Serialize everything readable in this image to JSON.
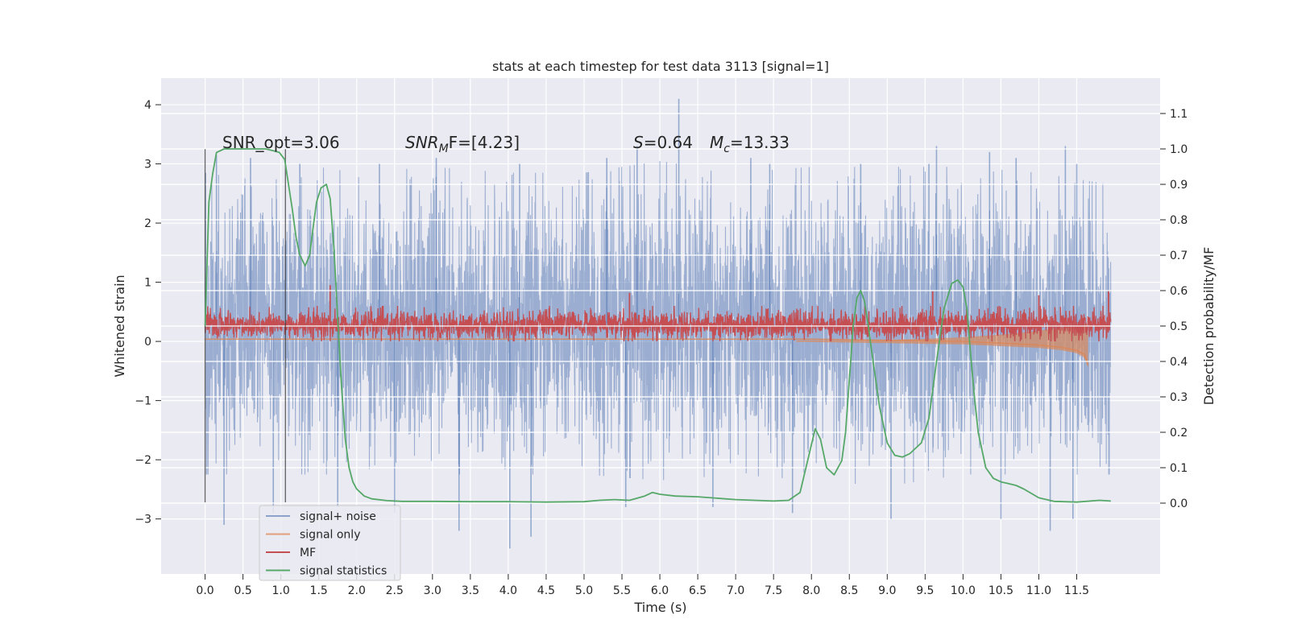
{
  "chart_data": {
    "type": "line",
    "title": "stats at each timestep for test data 3113 [signal=1]",
    "xlabel": "Time (s)",
    "ylabel_left": "Whitened strain",
    "ylabel_right": "Detection probability/MF",
    "xlim": [
      -0.58,
      12.6
    ],
    "ylim_left": [
      -3.93,
      4.45
    ],
    "ylim_right": [
      -0.2,
      1.2
    ],
    "grid": true,
    "legend_position": "lower-left",
    "x_ticks": [
      "0.0",
      "0.5",
      "1.0",
      "1.5",
      "2.0",
      "2.5",
      "3.0",
      "3.5",
      "4.0",
      "4.5",
      "5.0",
      "5.5",
      "6.0",
      "6.5",
      "7.0",
      "7.5",
      "8.0",
      "8.5",
      "9.0",
      "9.5",
      "10.0",
      "10.5",
      "11.0",
      "11.5"
    ],
    "y_ticks_left": [
      "4",
      "3",
      "2",
      "1",
      "0",
      "−1",
      "−2",
      "−3"
    ],
    "y_ticks_right": [
      "1.1",
      "1.0",
      "0.9",
      "0.8",
      "0.7",
      "0.6",
      "0.5",
      "0.4",
      "0.3",
      "0.2",
      "0.1",
      "0.0"
    ],
    "annotations": {
      "snr_opt": "SNR_opt=3.06",
      "snr_mf_a": "SNR",
      "snr_mf_b": "M",
      "snr_mf_c": "F=[4.23]",
      "s_a": "S",
      "s_b": "=0.64",
      "mc_a": "M",
      "mc_b": "c",
      "mc_c": "=13.33"
    },
    "vlines_x": [
      0.0,
      1.06
    ],
    "series": [
      {
        "name": "signal+ noise",
        "color": "#4c72b0",
        "note_range": "dense noise, roughly -2.3 to 2.9 with spikes up to 4.1 and down to -3.5",
        "t_end": 11.95,
        "envelope": [
          [
            0.0,
            -2.0,
            2.6
          ],
          [
            0.5,
            -2.0,
            2.5
          ],
          [
            1.0,
            -2.0,
            2.6
          ],
          [
            1.5,
            -2.0,
            2.7
          ],
          [
            2.0,
            -2.0,
            2.6
          ],
          [
            3.0,
            -2.0,
            2.7
          ],
          [
            4.0,
            -2.0,
            2.6
          ],
          [
            5.0,
            -2.0,
            2.6
          ],
          [
            6.0,
            -2.1,
            2.8
          ],
          [
            7.0,
            -2.0,
            2.6
          ],
          [
            8.0,
            -2.1,
            2.7
          ],
          [
            9.0,
            -2.2,
            2.7
          ],
          [
            10.0,
            -2.0,
            2.7
          ],
          [
            11.0,
            -2.0,
            2.6
          ],
          [
            11.95,
            -2.0,
            2.4
          ]
        ],
        "spikes": [
          [
            0.05,
            0.45
          ],
          [
            0.15,
            3.15
          ],
          [
            0.25,
            -3.1
          ],
          [
            0.6,
            3.1
          ],
          [
            0.9,
            -2.9
          ],
          [
            1.25,
            3.0
          ],
          [
            1.75,
            -2.8
          ],
          [
            2.3,
            3.0
          ],
          [
            2.5,
            -2.9
          ],
          [
            3.05,
            3.1
          ],
          [
            3.35,
            -3.2
          ],
          [
            4.02,
            -3.5
          ],
          [
            4.15,
            3.0
          ],
          [
            4.3,
            -3.3
          ],
          [
            5.3,
            3.1
          ],
          [
            5.55,
            -2.8
          ],
          [
            5.7,
            3.3
          ],
          [
            6.25,
            4.1
          ],
          [
            6.7,
            -2.8
          ],
          [
            7.2,
            3.1
          ],
          [
            7.45,
            3.0
          ],
          [
            7.75,
            -2.9
          ],
          [
            8.65,
            3.0
          ],
          [
            9.05,
            -3.0
          ],
          [
            9.55,
            3.0
          ],
          [
            9.65,
            3.3
          ],
          [
            10.35,
            3.2
          ],
          [
            10.5,
            -3.0
          ],
          [
            10.7,
            3.1
          ],
          [
            11.15,
            -3.2
          ],
          [
            11.35,
            3.3
          ],
          [
            11.45,
            -3.0
          ],
          [
            11.5,
            3.0
          ]
        ]
      },
      {
        "name": "signal only",
        "color": "#dd8452",
        "x": [
          0.0,
          8.0,
          9.0,
          10.0,
          10.5,
          11.0,
          11.3,
          11.5,
          11.6,
          11.63,
          11.65
        ],
        "y": [
          0.04,
          0.04,
          0.02,
          0.0,
          -0.03,
          -0.06,
          -0.1,
          -0.15,
          -0.22,
          -0.32,
          -0.4
        ]
      },
      {
        "name": "MF",
        "color": "#c44e52",
        "t_end": 11.95,
        "band": [
          0.0,
          0.6
        ],
        "spikes": [
          [
            1.65,
            0.95
          ],
          [
            5.6,
            0.82
          ],
          [
            9.6,
            0.85
          ],
          [
            11.0,
            0.78
          ],
          [
            11.92,
            0.85
          ]
        ]
      },
      {
        "name": "signal statistics",
        "color": "#55a868",
        "axis": "right",
        "x": [
          0.0,
          0.05,
          0.1,
          0.15,
          0.25,
          0.4,
          0.6,
          0.8,
          0.9,
          0.98,
          1.05,
          1.1,
          1.15,
          1.2,
          1.25,
          1.32,
          1.38,
          1.42,
          1.47,
          1.53,
          1.6,
          1.65,
          1.7,
          1.75,
          1.8,
          1.85,
          1.9,
          1.95,
          2.0,
          2.1,
          2.2,
          2.4,
          2.6,
          3.0,
          3.5,
          4.0,
          4.5,
          5.0,
          5.2,
          5.4,
          5.6,
          5.8,
          5.9,
          6.0,
          6.2,
          6.5,
          7.0,
          7.5,
          7.7,
          7.85,
          7.95,
          8.05,
          8.12,
          8.2,
          8.3,
          8.4,
          8.45,
          8.5,
          8.55,
          8.6,
          8.65,
          8.7,
          8.75,
          8.8,
          8.9,
          9.0,
          9.1,
          9.2,
          9.3,
          9.45,
          9.55,
          9.65,
          9.75,
          9.85,
          9.93,
          10.0,
          10.05,
          10.1,
          10.15,
          10.2,
          10.3,
          10.4,
          10.5,
          10.6,
          10.7,
          10.8,
          11.0,
          11.2,
          11.5,
          11.8,
          11.95
        ],
        "y": [
          0.5,
          0.85,
          0.93,
          0.99,
          1.0,
          1.0,
          1.0,
          1.0,
          0.995,
          0.99,
          0.97,
          0.9,
          0.83,
          0.75,
          0.7,
          0.67,
          0.7,
          0.77,
          0.85,
          0.89,
          0.9,
          0.86,
          0.72,
          0.52,
          0.33,
          0.18,
          0.1,
          0.06,
          0.04,
          0.02,
          0.012,
          0.007,
          0.005,
          0.005,
          0.004,
          0.004,
          0.003,
          0.004,
          0.008,
          0.01,
          0.008,
          0.02,
          0.03,
          0.025,
          0.02,
          0.018,
          0.01,
          0.006,
          0.008,
          0.03,
          0.12,
          0.21,
          0.18,
          0.1,
          0.08,
          0.12,
          0.2,
          0.35,
          0.5,
          0.58,
          0.6,
          0.57,
          0.5,
          0.42,
          0.27,
          0.17,
          0.135,
          0.13,
          0.14,
          0.17,
          0.24,
          0.4,
          0.55,
          0.62,
          0.63,
          0.61,
          0.55,
          0.42,
          0.3,
          0.2,
          0.1,
          0.07,
          0.06,
          0.055,
          0.05,
          0.04,
          0.015,
          0.005,
          0.003,
          0.008,
          0.006
        ]
      }
    ]
  }
}
